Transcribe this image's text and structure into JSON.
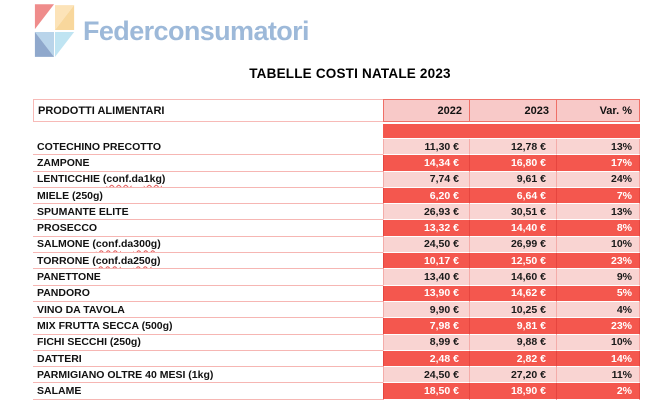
{
  "logo": {
    "text": "Federconsumatori",
    "text_color": "#9db9d9",
    "mark_colors": {
      "red": "#ef8c8b",
      "peach_light": "#fce3b8",
      "peach_deep": "#f8d79c",
      "blue_deep": "#8fa8cc",
      "blue_light": "#b9d4ea",
      "cyan": "#bfe4f2"
    }
  },
  "title": "TABELLE COSTI NATALE 2023",
  "table": {
    "headers": {
      "product": "PRODOTTI ALIMENTARI",
      "y2022": "2022",
      "y2023": "2023",
      "variation": "Var. %"
    },
    "colors": {
      "row_pink": "#f9d4d2",
      "row_red": "#f4574e",
      "header_bg": "#f8c9c8",
      "border_salmon": "#ef6f67"
    },
    "rows": [
      {
        "product": "COTECHINO PRECOTTO",
        "y2022": "11,30 €",
        "y2023": "12,78 €",
        "variation": "13%"
      },
      {
        "product": "ZAMPONE",
        "y2022": "14,34 €",
        "y2023": "16,80 €",
        "variation": "17%"
      },
      {
        "product": "LENTICCHIE (conf. da 1kg)",
        "y2022": "7,74 €",
        "y2023": "9,61 €",
        "variation": "24%"
      },
      {
        "product": "MIELE (250g)",
        "y2022": "6,20 €",
        "y2023": "6,64 €",
        "variation": "7%"
      },
      {
        "product": "SPUMANTE ELITE",
        "y2022": "26,93 €",
        "y2023": "30,51 €",
        "variation": "13%"
      },
      {
        "product": "PROSECCO",
        "y2022": "13,32 €",
        "y2023": "14,40 €",
        "variation": "8%"
      },
      {
        "product": "SALMONE (conf. da 300g)",
        "y2022": "24,50 €",
        "y2023": "26,99 €",
        "variation": "10%"
      },
      {
        "product": "TORRONE (conf. da 250g)",
        "y2022": "10,17 €",
        "y2023": "12,50 €",
        "variation": "23%"
      },
      {
        "product": "PANETTONE",
        "y2022": "13,40 €",
        "y2023": "14,60 €",
        "variation": "9%"
      },
      {
        "product": "PANDORO",
        "y2022": "13,90 €",
        "y2023": "14,62 €",
        "variation": "5%"
      },
      {
        "product": "VINO DA TAVOLA",
        "y2022": "9,90 €",
        "y2023": "10,25 €",
        "variation": "4%"
      },
      {
        "product": "MIX FRUTTA SECCA (500g)",
        "y2022": "7,98 €",
        "y2023": "9,81 €",
        "variation": "23%"
      },
      {
        "product": "FICHI SECCHI (250g)",
        "y2022": "8,99 €",
        "y2023": "9,88 €",
        "variation": "10%"
      },
      {
        "product": "DATTERI",
        "y2022": "2,48 €",
        "y2023": "2,82 €",
        "variation": "14%"
      },
      {
        "product": "PARMIGIANO OLTRE 40 MESI (1kg)",
        "y2022": "24,50 €",
        "y2023": "27,20 €",
        "variation": "11%"
      },
      {
        "product": "SALAME",
        "y2022": "18,50 €",
        "y2023": "18,90 €",
        "variation": "2%"
      }
    ]
  }
}
